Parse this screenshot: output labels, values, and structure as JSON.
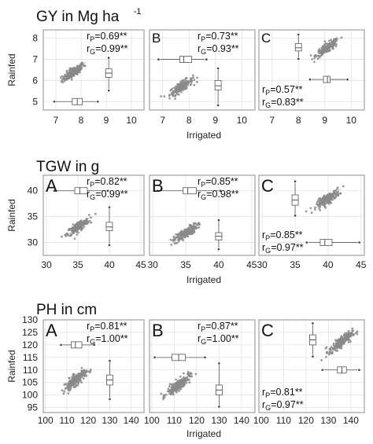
{
  "xlabel": "Irrigated",
  "ylabel": "Rainfed",
  "colors": {
    "points": "#8a8a8a",
    "box": "#555555",
    "grid": "#e3e3e3",
    "panel_border": "#8c8c8c",
    "trend": "#b5b5b5"
  },
  "chart_data": [
    {
      "type": "scatter",
      "title": "GY in Mg ha",
      "title_superscript": "-1",
      "xlim": [
        6.5,
        10.5
      ],
      "ylim": [
        4.6,
        8.4
      ],
      "x_ticks": [
        7,
        8,
        9,
        10
      ],
      "y_ticks": [
        5,
        6,
        7,
        8
      ],
      "panels": [
        {
          "letter": "",
          "r_p": "0.69**",
          "r_g": "0.99**",
          "stats_position": "top-right",
          "cloud": {
            "x": 7.7,
            "y": 6.4,
            "n": 170
          },
          "boxplot_x": {
            "y_position": 5.0,
            "min": 7.0,
            "q1": 7.65,
            "median": 7.85,
            "q3": 8.05,
            "max": 8.6
          },
          "boxplot_y": {
            "x_position": 9.1,
            "min": 5.6,
            "q1": 6.15,
            "median": 6.35,
            "q3": 6.55,
            "max": 7.0
          }
        },
        {
          "letter": "B",
          "r_p": "0.73**",
          "r_g": "0.93**",
          "stats_position": "top-right",
          "cloud": {
            "x": 7.7,
            "y": 5.7,
            "n": 170
          },
          "boxplot_x": {
            "y_position": 7.0,
            "min": 6.9,
            "q1": 7.65,
            "median": 7.8,
            "q3": 8.1,
            "max": 8.6
          },
          "boxplot_y": {
            "x_position": 9.1,
            "min": 4.9,
            "q1": 5.55,
            "median": 5.75,
            "q3": 6.0,
            "max": 6.5
          }
        },
        {
          "letter": "C",
          "r_p": "0.57**",
          "r_g": "0.83**",
          "stats_position": "bottom-left",
          "cloud": {
            "x": 9.1,
            "y": 7.55,
            "n": 170
          },
          "boxplot_x": {
            "y_position": 6.05,
            "min": 8.5,
            "q1": 8.95,
            "median": 9.1,
            "q3": 9.2,
            "max": 9.8
          },
          "boxplot_y": {
            "x_position": 8.0,
            "min": 7.1,
            "q1": 7.4,
            "median": 7.55,
            "q3": 7.75,
            "max": 8.1
          }
        }
      ]
    },
    {
      "type": "scatter",
      "title": "TGW in g",
      "title_superscript": "",
      "xlim": [
        29.5,
        45.5
      ],
      "ylim": [
        27.5,
        43.0
      ],
      "x_ticks": [
        30,
        35,
        40,
        45
      ],
      "y_ticks": [
        30,
        35,
        40
      ],
      "panels": [
        {
          "letter": "A",
          "r_p": "0.82**",
          "r_g": "0.99**",
          "stats_position": "top-right",
          "cloud": {
            "x": 35,
            "y": 33,
            "n": 190
          },
          "boxplot_x": {
            "y_position": 40.0,
            "min": 31.5,
            "q1": 34.5,
            "median": 35.3,
            "q3": 36.5,
            "max": 39.5
          },
          "boxplot_y": {
            "x_position": 40.0,
            "min": 29.8,
            "q1": 32.3,
            "median": 33.0,
            "q3": 33.9,
            "max": 36.5
          }
        },
        {
          "letter": "B",
          "r_p": "0.85**",
          "r_g": "0.98**",
          "stats_position": "top-right",
          "cloud": {
            "x": 35,
            "y": 31.8,
            "n": 190
          },
          "boxplot_x": {
            "y_position": 40.0,
            "min": 31.0,
            "q1": 34.6,
            "median": 35.3,
            "q3": 36.6,
            "max": 40.0
          },
          "boxplot_y": {
            "x_position": 40.0,
            "min": 29.0,
            "q1": 30.5,
            "median": 31.2,
            "q3": 31.9,
            "max": 34.0
          }
        },
        {
          "letter": "C",
          "r_p": "0.85**",
          "r_g": "0.97**",
          "stats_position": "bottom-left",
          "cloud": {
            "x": 40,
            "y": 38.5,
            "n": 190
          },
          "boxplot_x": {
            "y_position": 30.0,
            "min": 37.0,
            "q1": 38.8,
            "median": 39.5,
            "q3": 40.6,
            "max": 44.5
          },
          "boxplot_y": {
            "x_position": 35.0,
            "min": 35.5,
            "q1": 37.2,
            "median": 38.2,
            "q3": 39.2,
            "max": 41.5
          }
        }
      ]
    },
    {
      "type": "scatter",
      "title": "PH in cm",
      "title_superscript": "",
      "xlim": [
        99,
        146
      ],
      "ylim": [
        93,
        130
      ],
      "x_ticks": [
        100,
        110,
        120,
        130,
        140
      ],
      "y_ticks": [
        95,
        100,
        105,
        110,
        115,
        120,
        125,
        130
      ],
      "panels": [
        {
          "letter": "A",
          "r_p": "0.81**",
          "r_g": "1.00**",
          "stats_position": "top-right",
          "cloud": {
            "x": 114,
            "y": 106,
            "n": 190
          },
          "boxplot_x": {
            "y_position": 120.0,
            "min": 108,
            "q1": 112,
            "median": 114,
            "q3": 117,
            "max": 122
          },
          "boxplot_y": {
            "x_position": 130.0,
            "min": 99,
            "q1": 104,
            "median": 106,
            "q3": 108,
            "max": 113
          }
        },
        {
          "letter": "B",
          "r_p": "0.87**",
          "r_g": "1.00**",
          "stats_position": "top-right",
          "cloud": {
            "x": 112,
            "y": 104,
            "n": 190
          },
          "boxplot_x": {
            "y_position": 115.0,
            "min": 102,
            "q1": 109,
            "median": 112,
            "q3": 115,
            "max": 123
          },
          "boxplot_y": {
            "x_position": 130.0,
            "min": 96,
            "q1": 100,
            "median": 102,
            "q3": 104,
            "max": 112
          }
        },
        {
          "letter": "C",
          "r_p": "0.81**",
          "r_g": "0.97**",
          "stats_position": "bottom-left",
          "cloud": {
            "x": 135.5,
            "y": 121,
            "n": 190
          },
          "boxplot_x": {
            "y_position": 110.0,
            "min": 128,
            "q1": 134,
            "median": 136,
            "q3": 138,
            "max": 143
          },
          "boxplot_y": {
            "x_position": 123.0,
            "min": 116,
            "q1": 120,
            "median": 122,
            "q3": 124,
            "max": 128
          }
        }
      ]
    }
  ]
}
